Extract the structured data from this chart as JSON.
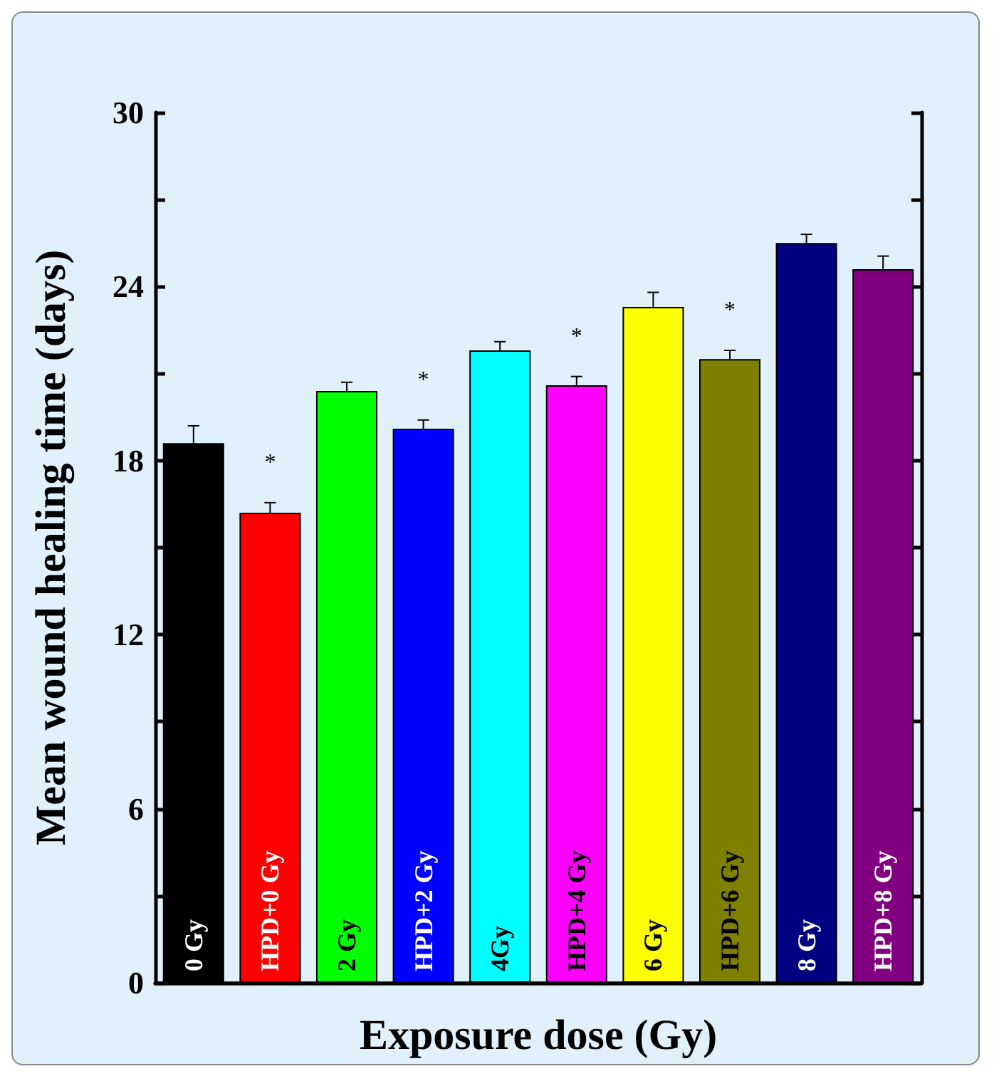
{
  "chart_data": {
    "type": "bar",
    "xlabel": "Exposure dose (Gy)",
    "ylabel": "Mean wound healing time (days)",
    "categories": [
      "0 Gy",
      "HPD+0 Gy",
      "2 Gy",
      "HPD+2 Gy",
      "4Gy",
      "HPD+4 Gy",
      "6 Gy",
      "HPD+6 Gy",
      "8 Gy",
      "HPD+8 Gy"
    ],
    "values": [
      18.6,
      16.2,
      20.4,
      19.1,
      21.8,
      20.6,
      23.3,
      21.5,
      25.5,
      24.6
    ],
    "colors": [
      "#000000",
      "#ff0000",
      "#00ff00",
      "#0000ff",
      "#00ffff",
      "#ff00ff",
      "#ffff00",
      "#808000",
      "#000080",
      "#800080"
    ],
    "errors": [
      0.6,
      0.35,
      0.3,
      0.3,
      0.3,
      0.3,
      0.5,
      0.3,
      0.3,
      0.45
    ],
    "ylim": [
      0,
      30
    ],
    "yticks": [
      0,
      6,
      12,
      18,
      24,
      30
    ],
    "grid": false,
    "annotations": [
      {
        "text": "*",
        "x": "HPD+0 Gy",
        "y": 16.2
      },
      {
        "text": "*",
        "x": "HPD+2 Gy",
        "y": 19.1
      },
      {
        "text": "*",
        "x": "HPD+4 Gy",
        "y": 20.6
      },
      {
        "text": "*",
        "x": "HPD+6 Gy",
        "y": 21.5
      }
    ]
  }
}
